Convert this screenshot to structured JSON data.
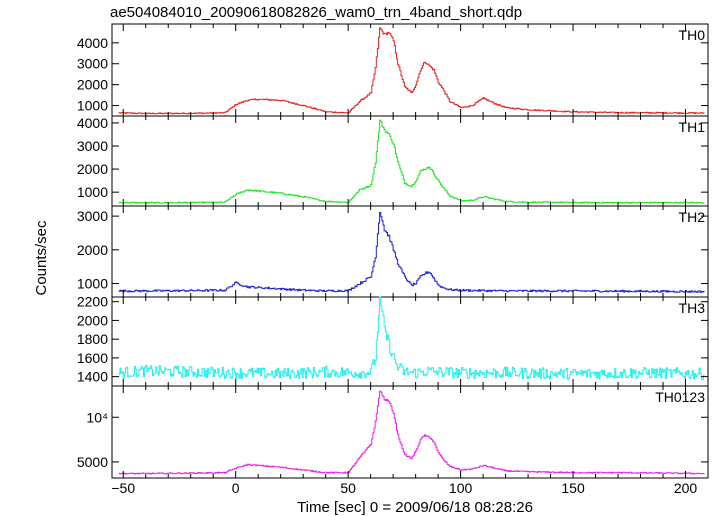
{
  "chart_data": {
    "type": "line",
    "title": "ae504084010_20090618082826_wam0_trn_4band_short.qdp",
    "xlabel": "Time [sec] 0 = 2009/06/18 08:28:26",
    "ylabel": "Counts/sec",
    "xlim": [
      -55,
      210
    ],
    "x_ticks": [
      "−50",
      "0",
      "50",
      "100",
      "150",
      "200"
    ],
    "panels": [
      {
        "name": "TH0",
        "color": "#e8221e",
        "ylim": [
          500,
          4900
        ],
        "y_ticks": [
          "1000",
          "2000",
          "3000",
          "4000"
        ],
        "x": [
          -52,
          -40,
          -20,
          -5,
          0,
          5,
          10,
          20,
          30,
          40,
          50,
          55,
          60,
          62,
          64,
          66,
          68,
          70,
          72,
          75,
          78,
          80,
          82,
          84,
          86,
          88,
          90,
          92,
          95,
          100,
          105,
          110,
          115,
          120,
          130,
          140,
          150,
          170,
          190,
          208
        ],
        "values": [
          650,
          620,
          630,
          650,
          1050,
          1250,
          1300,
          1250,
          1000,
          700,
          650,
          1200,
          1600,
          2800,
          4700,
          4400,
          4500,
          4100,
          3000,
          1900,
          1600,
          2000,
          2700,
          3100,
          2900,
          2700,
          2100,
          1800,
          1200,
          900,
          1000,
          1350,
          1100,
          900,
          800,
          750,
          700,
          660,
          650,
          640
        ]
      },
      {
        "name": "TH1",
        "color": "#21e321",
        "ylim": [
          400,
          4300
        ],
        "y_ticks": [
          "1000",
          "2000",
          "3000",
          "4000"
        ],
        "x": [
          -52,
          -40,
          -20,
          -5,
          0,
          5,
          10,
          20,
          30,
          40,
          50,
          55,
          60,
          62,
          64,
          66,
          68,
          70,
          72,
          75,
          78,
          80,
          82,
          84,
          86,
          88,
          90,
          92,
          95,
          100,
          105,
          110,
          115,
          120,
          130,
          140,
          150,
          170,
          190,
          208
        ],
        "values": [
          550,
          540,
          550,
          560,
          900,
          1100,
          1050,
          950,
          800,
          600,
          560,
          1100,
          1300,
          2300,
          4100,
          3700,
          3500,
          3100,
          2300,
          1400,
          1250,
          1500,
          1900,
          2000,
          2100,
          1800,
          1500,
          1200,
          850,
          620,
          650,
          800,
          700,
          600,
          560,
          560,
          550,
          545,
          550,
          540
        ]
      },
      {
        "name": "TH2",
        "color": "#1e1ed6",
        "ylim": [
          600,
          3300
        ],
        "y_ticks": [
          "1000",
          "2000",
          "3000"
        ],
        "x": [
          -52,
          -40,
          -20,
          -5,
          0,
          5,
          10,
          20,
          30,
          40,
          50,
          55,
          60,
          62,
          64,
          66,
          68,
          70,
          72,
          75,
          78,
          80,
          82,
          84,
          86,
          88,
          90,
          92,
          95,
          100,
          110,
          120,
          150,
          180,
          208
        ],
        "values": [
          780,
          780,
          790,
          800,
          1020,
          900,
          880,
          840,
          800,
          780,
          790,
          1000,
          1200,
          1800,
          3150,
          2600,
          2400,
          2000,
          1600,
          1200,
          950,
          1000,
          1200,
          1300,
          1350,
          1150,
          950,
          880,
          820,
          800,
          790,
          780,
          780,
          770,
          760
        ]
      },
      {
        "name": "TH3",
        "color": "#20f0f0",
        "ylim": [
          1300,
          2250
        ],
        "y_ticks": [
          "1400",
          "1600",
          "1800",
          "2000",
          "2200"
        ],
        "x": [
          -52,
          -40,
          -20,
          0,
          20,
          40,
          55,
          60,
          62,
          64,
          66,
          68,
          70,
          72,
          75,
          80,
          85,
          90,
          100,
          120,
          150,
          180,
          208
        ],
        "values": [
          1440,
          1460,
          1450,
          1440,
          1430,
          1450,
          1440,
          1450,
          1600,
          2230,
          1900,
          1750,
          1600,
          1500,
          1450,
          1440,
          1460,
          1450,
          1440,
          1440,
          1430,
          1440,
          1430
        ]
      },
      {
        "name": "TH0123",
        "color": "#e821e8",
        "ylim": [
          3200,
          13500
        ],
        "y_ticks": [
          "5000",
          "10⁴"
        ],
        "x": [
          -52,
          -40,
          -20,
          -5,
          0,
          5,
          10,
          20,
          30,
          40,
          50,
          55,
          60,
          62,
          64,
          66,
          68,
          70,
          72,
          75,
          78,
          80,
          82,
          84,
          86,
          88,
          90,
          92,
          95,
          100,
          105,
          110,
          115,
          120,
          130,
          150,
          170,
          190,
          208
        ],
        "values": [
          3700,
          3700,
          3750,
          3800,
          4300,
          4700,
          4600,
          4400,
          4100,
          3800,
          3800,
          5500,
          7000,
          9500,
          13000,
          12000,
          11800,
          10500,
          8000,
          5800,
          5400,
          6200,
          7500,
          8000,
          7700,
          7300,
          6000,
          5300,
          4500,
          4100,
          4200,
          4600,
          4300,
          4000,
          3900,
          3800,
          3800,
          3750,
          3700
        ]
      }
    ]
  }
}
